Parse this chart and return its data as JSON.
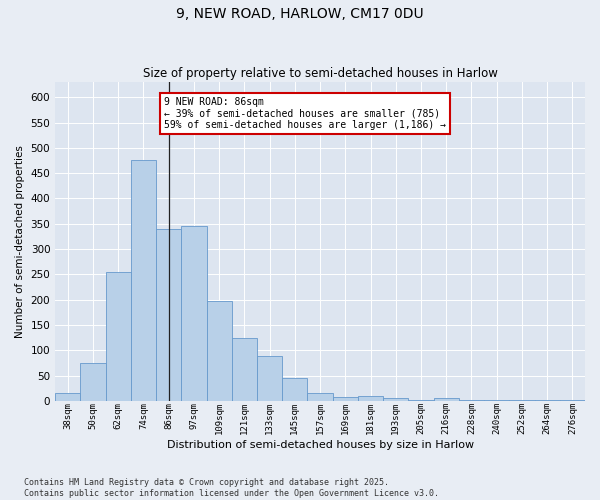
{
  "title1": "9, NEW ROAD, HARLOW, CM17 0DU",
  "title2": "Size of property relative to semi-detached houses in Harlow",
  "xlabel": "Distribution of semi-detached houses by size in Harlow",
  "ylabel": "Number of semi-detached properties",
  "categories": [
    "38sqm",
    "50sqm",
    "62sqm",
    "74sqm",
    "86sqm",
    "97sqm",
    "109sqm",
    "121sqm",
    "133sqm",
    "145sqm",
    "157sqm",
    "169sqm",
    "181sqm",
    "193sqm",
    "205sqm",
    "216sqm",
    "228sqm",
    "240sqm",
    "252sqm",
    "264sqm",
    "276sqm"
  ],
  "bar_heights": [
    15,
    74,
    255,
    475,
    340,
    345,
    197,
    125,
    88,
    46,
    15,
    7,
    9,
    6,
    2,
    5,
    2,
    1,
    1,
    1,
    2
  ],
  "bar_color": "#b8d0e8",
  "bar_edge_color": "#6699cc",
  "vline_idx": 4,
  "vline_color": "#222222",
  "annotation_title": "9 NEW ROAD: 86sqm",
  "annotation_line1": "← 39% of semi-detached houses are smaller (785)",
  "annotation_line2": "59% of semi-detached houses are larger (1,186) →",
  "annotation_box_facecolor": "#ffffff",
  "annotation_box_edgecolor": "#cc0000",
  "footer": "Contains HM Land Registry data © Crown copyright and database right 2025.\nContains public sector information licensed under the Open Government Licence v3.0.",
  "fig_facecolor": "#e8edf4",
  "axes_facecolor": "#dde5f0",
  "ylim": [
    0,
    630
  ],
  "yticks": [
    0,
    50,
    100,
    150,
    200,
    250,
    300,
    350,
    400,
    450,
    500,
    550,
    600
  ]
}
